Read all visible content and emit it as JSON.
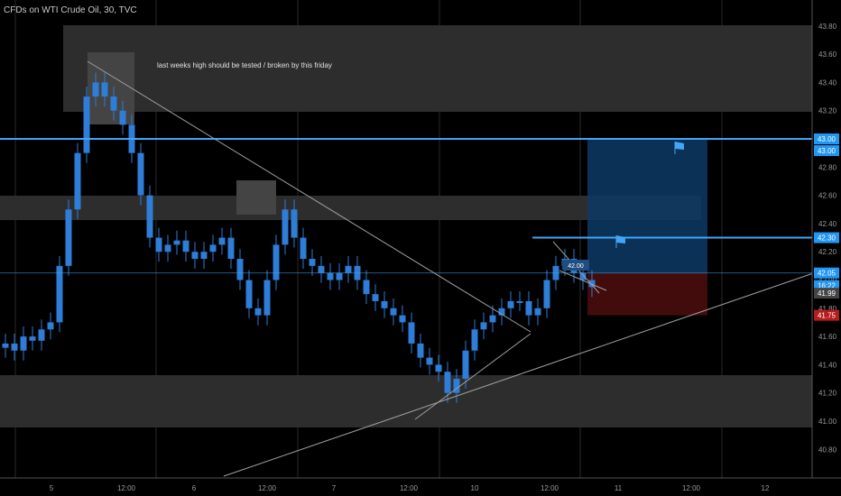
{
  "header": {
    "title": "CFDs on WTI Crude Oil, 30, TVC"
  },
  "annotation": {
    "text": "last weeks high should be tested / broken by this friday"
  },
  "axis": {
    "price_labels": [
      "43.80",
      "43.60",
      "43.40",
      "43.20",
      "43.00",
      "42.80",
      "42.60",
      "42.40",
      "42.20",
      "42.00",
      "41.80",
      "41.60",
      "41.40",
      "41.20",
      "41.00",
      "40.80"
    ],
    "time_labels": [
      "5",
      "12:00",
      "6",
      "12:00",
      "7",
      "12:00",
      "10",
      "12:00",
      "11",
      "12:00",
      "12"
    ]
  },
  "price_tags": [
    {
      "id": "tag-43-00a",
      "text": "43.00",
      "bg": "#2196f3",
      "fg": "#ffffff"
    },
    {
      "id": "tag-43-00b",
      "text": "43.00",
      "bg": "#2196f3",
      "fg": "#ffffff"
    },
    {
      "id": "tag-42-30",
      "text": "42.30",
      "bg": "#2196f3",
      "fg": "#ffffff"
    },
    {
      "id": "tag-42-05",
      "text": "42.05",
      "bg": "#2196f3",
      "fg": "#ffffff"
    },
    {
      "id": "tag-countdown",
      "text": "16:22",
      "bg": "#2196f3",
      "fg": "#ffffff"
    },
    {
      "id": "tag-41-99",
      "text": "41.99",
      "bg": "#444444",
      "fg": "#ffffff"
    },
    {
      "id": "tag-41-75",
      "text": "41.75",
      "bg": "#b71c1c",
      "fg": "#ffffff"
    }
  ],
  "chip": {
    "text": "42.00"
  },
  "colors": {
    "candle": "#2e7dd6",
    "level_line": "#42a5f5",
    "zone": "#3a3a3a",
    "target": "#0d3a66",
    "stop": "#4a0d0d",
    "trend": "#9e9e9e"
  },
  "chart_data": {
    "type": "candlestick",
    "symbol": "CFDs on WTI Crude Oil",
    "interval": "30",
    "ylim": [
      40.72,
      43.92
    ],
    "horizontal_levels": [
      43.0,
      42.3,
      42.05
    ],
    "trade": {
      "entry": 42.05,
      "target": 43.0,
      "stop": 41.75
    },
    "close": [
      41.55,
      41.5,
      41.6,
      41.57,
      41.65,
      41.7,
      42.1,
      42.5,
      42.9,
      43.3,
      43.4,
      43.3,
      43.2,
      43.1,
      42.9,
      42.6,
      42.3,
      42.2,
      42.25,
      42.28,
      42.2,
      42.15,
      42.2,
      42.25,
      42.3,
      42.15,
      42.0,
      41.8,
      41.75,
      42.0,
      42.25,
      42.5,
      42.3,
      42.15,
      42.1,
      42.05,
      42.0,
      42.05,
      42.1,
      42.0,
      41.9,
      41.85,
      41.8,
      41.75,
      41.7,
      41.55,
      41.45,
      41.4,
      41.35,
      41.2,
      41.3,
      41.5,
      41.65,
      41.7,
      41.75,
      41.8,
      41.85,
      41.85,
      41.75,
      41.8,
      42.0,
      42.1,
      42.15,
      42.05,
      42.0,
      41.95
    ]
  }
}
